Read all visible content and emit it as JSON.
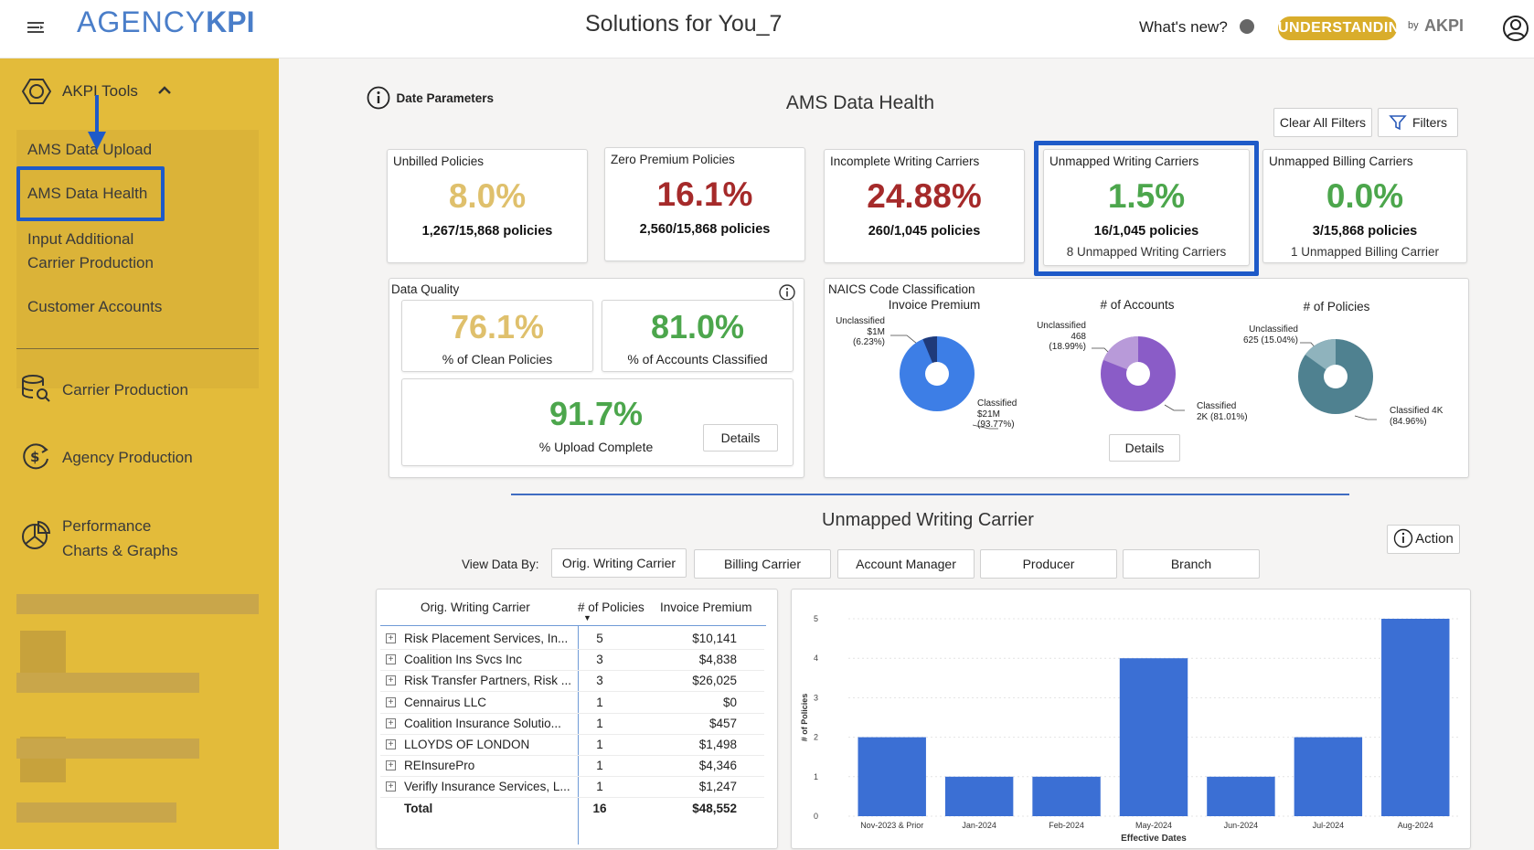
{
  "header": {
    "logo_left": "AGENCY",
    "logo_right": "KPI",
    "title": "Solutions for You_7",
    "whats_new": "What's new?",
    "badge": "UNDERSTANDING",
    "by": "by",
    "brand_small": "AKPI"
  },
  "sidebar": {
    "tools_label": "AKPI Tools",
    "sub_items": [
      "AMS Data Upload",
      "AMS Data Health",
      "Input Additional",
      "Carrier Production",
      "Customer Accounts"
    ],
    "nav_items": [
      "Carrier Production",
      "Agency Production",
      "Performance",
      "Charts & Graphs"
    ]
  },
  "main": {
    "date_params": "Date Parameters",
    "section_title": "AMS Data Health",
    "clear_filters": "Clear All Filters",
    "filters": "Filters",
    "kpis": [
      {
        "title": "Unbilled Policies",
        "value": "8.0%",
        "sub": "1,267/15,868 policies",
        "color": "#dfc06c"
      },
      {
        "title": "Zero Premium Policies",
        "value": "16.1%",
        "sub": "2,560/15,868 policies",
        "color": "#a52a2a"
      },
      {
        "title": "Incomplete Writing Carriers",
        "value": "24.88%",
        "sub": "260/1,045 policies",
        "color": "#a52a2a"
      },
      {
        "title": "Unmapped Writing Carriers",
        "value": "1.5%",
        "sub": "16/1,045 policies",
        "extra": "8 Unmapped Writing Carriers",
        "color": "#4ca64c"
      },
      {
        "title": "Unmapped Billing Carriers",
        "value": "0.0%",
        "sub": "3/15,868 policies",
        "extra": "1 Unmapped Billing Carrier",
        "color": "#4ca64c"
      }
    ],
    "quality": {
      "title": "Data Quality",
      "clean_value": "76.1%",
      "clean_label": "% of Clean Policies",
      "classified_value": "81.0%",
      "classified_label": "% of Accounts Classified",
      "upload_value": "91.7%",
      "upload_label": "% Upload Complete",
      "details": "Details"
    },
    "naics": {
      "title": "NAICS Code Classification",
      "details": "Details",
      "pies": [
        {
          "title": "Invoice Premium",
          "unclassified": [
            "Unclassified",
            "$1M",
            "(6.23%)"
          ],
          "classified": [
            "Classified",
            "$21M",
            "(93.77%)"
          ],
          "share": 0.0623,
          "color": "#3d7ee6"
        },
        {
          "title": "# of Accounts",
          "unclassified": [
            "Unclassified",
            "468",
            "(18.99%)"
          ],
          "classified": [
            "Classified",
            "2K (81.01%)"
          ],
          "share": 0.1899,
          "color": "#8a5cc7"
        },
        {
          "title": "# of Policies",
          "unclassified": [
            "Unclassified",
            "625 (15.04%)"
          ],
          "classified": [
            "Classified 4K",
            "(84.96%)"
          ],
          "share": 0.1504,
          "color": "#4f8190"
        }
      ]
    },
    "unmapped_title": "Unmapped Writing Carrier",
    "action": "Action",
    "view_data_by": "View Data By:",
    "view_tabs": [
      "Orig. Writing Carrier",
      "Billing Carrier",
      "Account Manager",
      "Producer",
      "Branch"
    ],
    "table": {
      "headers": [
        "Orig. Writing Carrier",
        "# of Policies",
        "Invoice Premium"
      ],
      "rows": [
        [
          "Risk Placement Services, In...",
          "5",
          "$10,141"
        ],
        [
          "Coalition Ins Svcs Inc",
          "3",
          "$4,838"
        ],
        [
          "Risk Transfer Partners, Risk ...",
          "3",
          "$26,025"
        ],
        [
          "Cennairus LLC",
          "1",
          "$0"
        ],
        [
          "Coalition Insurance Solutio...",
          "1",
          "$457"
        ],
        [
          "LLOYDS OF LONDON",
          "1",
          "$1,498"
        ],
        [
          "REInsurePro",
          "1",
          "$4,346"
        ],
        [
          "Verifly Insurance Services, L...",
          "1",
          "$1,247"
        ]
      ],
      "total": [
        "Total",
        "16",
        "$48,552"
      ]
    }
  },
  "chart_data": {
    "type": "bar",
    "categories": [
      "Nov-2023 & Prior",
      "Jan-2024",
      "Feb-2024",
      "May-2024",
      "Jun-2024",
      "Jul-2024",
      "Aug-2024"
    ],
    "values": [
      2,
      1,
      1,
      4,
      1,
      2,
      5
    ],
    "xlabel": "Effective Dates",
    "ylabel": "# of Policies",
    "ylim": [
      0,
      5
    ],
    "yticks": [
      "0",
      "1",
      "2",
      "3",
      "4",
      "5"
    ],
    "color": "#3b6fd4"
  }
}
